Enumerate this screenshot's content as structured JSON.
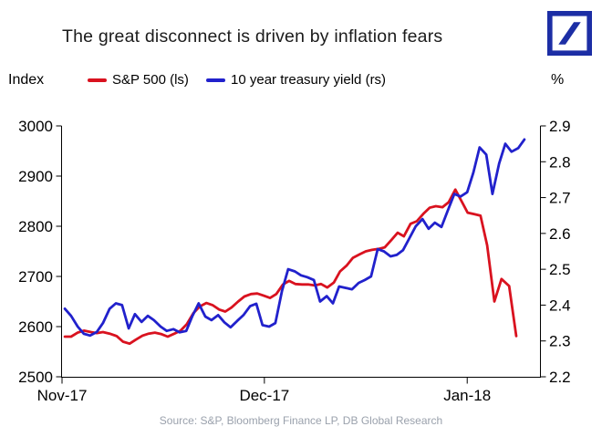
{
  "colors": {
    "logo_blue": "#1c2ea5",
    "axis_black": "#000000",
    "title_black": "#1b1b1b",
    "source_gray": "#9aa1ac"
  },
  "chart_data": {
    "type": "line",
    "title": "The great disconnect is driven by inflation fears",
    "source": "Source: S&P, Bloomberg Finance LP, DB Global Research",
    "grid": false,
    "legend_position": "top",
    "x_ticks": [
      {
        "label": "Nov-17",
        "fx": 0.0
      },
      {
        "label": "Dec-17",
        "fx": 0.425
      },
      {
        "label": "Jan-18",
        "fx": 0.851
      }
    ],
    "left_axis": {
      "label": "Index",
      "min": 2500,
      "max": 3000,
      "ticks": [
        3000,
        2900,
        2800,
        2700,
        2600,
        2500
      ]
    },
    "right_axis": {
      "label": "%",
      "min": 2.2,
      "max": 2.9,
      "ticks": [
        2.9,
        2.8,
        2.7,
        2.6,
        2.5,
        2.4,
        2.3,
        2.2
      ]
    },
    "series": [
      {
        "id": "sp500",
        "name": "S&P 500 (ls)",
        "axis": "left",
        "color": "#d9121f",
        "points": [
          [
            0.006,
            2580
          ],
          [
            0.019,
            2580
          ],
          [
            0.033,
            2588
          ],
          [
            0.046,
            2592
          ],
          [
            0.061,
            2589
          ],
          [
            0.073,
            2587
          ],
          [
            0.086,
            2589
          ],
          [
            0.1,
            2586
          ],
          [
            0.115,
            2581
          ],
          [
            0.128,
            2570
          ],
          [
            0.142,
            2566
          ],
          [
            0.155,
            2574
          ],
          [
            0.169,
            2582
          ],
          [
            0.182,
            2586
          ],
          [
            0.195,
            2588
          ],
          [
            0.209,
            2585
          ],
          [
            0.222,
            2580
          ],
          [
            0.236,
            2586
          ],
          [
            0.249,
            2592
          ],
          [
            0.262,
            2605
          ],
          [
            0.276,
            2627
          ],
          [
            0.289,
            2640
          ],
          [
            0.303,
            2647
          ],
          [
            0.316,
            2643
          ],
          [
            0.33,
            2634
          ],
          [
            0.343,
            2630
          ],
          [
            0.356,
            2638
          ],
          [
            0.37,
            2650
          ],
          [
            0.383,
            2660
          ],
          [
            0.397,
            2665
          ],
          [
            0.41,
            2666
          ],
          [
            0.423,
            2662
          ],
          [
            0.437,
            2657
          ],
          [
            0.45,
            2665
          ],
          [
            0.464,
            2684
          ],
          [
            0.477,
            2691
          ],
          [
            0.49,
            2685
          ],
          [
            0.504,
            2684
          ],
          [
            0.517,
            2684
          ],
          [
            0.531,
            2682
          ],
          [
            0.544,
            2685
          ],
          [
            0.557,
            2678
          ],
          [
            0.571,
            2688
          ],
          [
            0.584,
            2710
          ],
          [
            0.598,
            2722
          ],
          [
            0.611,
            2737
          ],
          [
            0.625,
            2744
          ],
          [
            0.638,
            2750
          ],
          [
            0.651,
            2753
          ],
          [
            0.665,
            2755
          ],
          [
            0.678,
            2758
          ],
          [
            0.692,
            2773
          ],
          [
            0.705,
            2787
          ],
          [
            0.718,
            2780
          ],
          [
            0.732,
            2805
          ],
          [
            0.745,
            2810
          ],
          [
            0.759,
            2825
          ],
          [
            0.772,
            2837
          ],
          [
            0.785,
            2840
          ],
          [
            0.799,
            2838
          ],
          [
            0.812,
            2848
          ],
          [
            0.826,
            2873
          ],
          [
            0.839,
            2850
          ],
          [
            0.852,
            2827
          ],
          [
            0.866,
            2824
          ],
          [
            0.879,
            2821
          ],
          [
            0.893,
            2762
          ],
          [
            0.908,
            2650
          ],
          [
            0.923,
            2695
          ],
          [
            0.939,
            2681
          ],
          [
            0.954,
            2581
          ]
        ]
      },
      {
        "id": "treasury10y",
        "name": "10 year treasury yield (rs)",
        "axis": "right",
        "color": "#2121cc",
        "points": [
          [
            0.006,
            2.39
          ],
          [
            0.019,
            2.37
          ],
          [
            0.033,
            2.34
          ],
          [
            0.046,
            2.32
          ],
          [
            0.059,
            2.315
          ],
          [
            0.073,
            2.325
          ],
          [
            0.086,
            2.35
          ],
          [
            0.1,
            2.39
          ],
          [
            0.113,
            2.405
          ],
          [
            0.126,
            2.4
          ],
          [
            0.14,
            2.335
          ],
          [
            0.153,
            2.375
          ],
          [
            0.167,
            2.353
          ],
          [
            0.18,
            2.37
          ],
          [
            0.193,
            2.358
          ],
          [
            0.207,
            2.34
          ],
          [
            0.22,
            2.328
          ],
          [
            0.234,
            2.333
          ],
          [
            0.247,
            2.324
          ],
          [
            0.261,
            2.328
          ],
          [
            0.274,
            2.37
          ],
          [
            0.287,
            2.405
          ],
          [
            0.301,
            2.368
          ],
          [
            0.314,
            2.358
          ],
          [
            0.328,
            2.372
          ],
          [
            0.341,
            2.352
          ],
          [
            0.354,
            2.338
          ],
          [
            0.368,
            2.356
          ],
          [
            0.381,
            2.372
          ],
          [
            0.395,
            2.397
          ],
          [
            0.408,
            2.404
          ],
          [
            0.421,
            2.344
          ],
          [
            0.435,
            2.34
          ],
          [
            0.448,
            2.35
          ],
          [
            0.462,
            2.44
          ],
          [
            0.475,
            2.5
          ],
          [
            0.489,
            2.494
          ],
          [
            0.502,
            2.483
          ],
          [
            0.515,
            2.478
          ],
          [
            0.529,
            2.47
          ],
          [
            0.542,
            2.41
          ],
          [
            0.556,
            2.425
          ],
          [
            0.569,
            2.405
          ],
          [
            0.582,
            2.452
          ],
          [
            0.596,
            2.448
          ],
          [
            0.609,
            2.444
          ],
          [
            0.623,
            2.462
          ],
          [
            0.636,
            2.47
          ],
          [
            0.649,
            2.48
          ],
          [
            0.663,
            2.556
          ],
          [
            0.676,
            2.55
          ],
          [
            0.69,
            2.536
          ],
          [
            0.703,
            2.54
          ],
          [
            0.716,
            2.553
          ],
          [
            0.73,
            2.588
          ],
          [
            0.743,
            2.62
          ],
          [
            0.757,
            2.64
          ],
          [
            0.77,
            2.613
          ],
          [
            0.783,
            2.63
          ],
          [
            0.797,
            2.618
          ],
          [
            0.81,
            2.663
          ],
          [
            0.824,
            2.71
          ],
          [
            0.837,
            2.703
          ],
          [
            0.851,
            2.715
          ],
          [
            0.864,
            2.77
          ],
          [
            0.877,
            2.84
          ],
          [
            0.891,
            2.82
          ],
          [
            0.904,
            2.71
          ],
          [
            0.918,
            2.795
          ],
          [
            0.931,
            2.85
          ],
          [
            0.944,
            2.828
          ],
          [
            0.958,
            2.838
          ],
          [
            0.971,
            2.862
          ]
        ]
      }
    ]
  }
}
